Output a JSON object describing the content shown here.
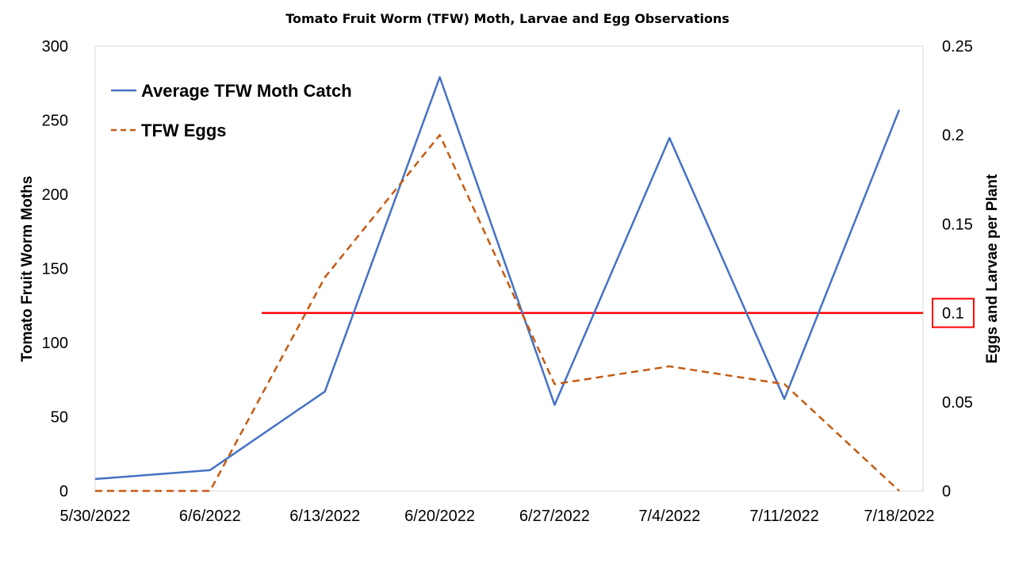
{
  "chart_data": {
    "type": "line",
    "title": "Tomato Fruit Worm (TFW) Moth, Larvae and Egg Observations",
    "x": [
      "5/30/2022",
      "6/6/2022",
      "6/13/2022",
      "6/20/2022",
      "6/27/2022",
      "7/4/2022",
      "7/11/2022",
      "7/18/2022"
    ],
    "ylabel": "Tomato Fruit Worm Moths",
    "ylim": [
      0,
      300
    ],
    "yticks": [
      "0",
      "50",
      "100",
      "150",
      "200",
      "250",
      "300"
    ],
    "y2label": "Eggs and Larvae per Plant",
    "y2lim": [
      0,
      0.25
    ],
    "y2ticks": [
      "0",
      "0.05",
      "0.1",
      "0.15",
      "0.2",
      "0.25"
    ],
    "highlighted_y2_tick": "0.1",
    "legend_position": "top-left",
    "grid": false,
    "series": [
      {
        "name": "Average TFW Moth Catch",
        "axis": "left",
        "color": "#4472C4",
        "style": "solid",
        "values": [
          8,
          14,
          67,
          279,
          58,
          238,
          62,
          257
        ]
      },
      {
        "name": "TFW Eggs",
        "axis": "right",
        "color": "#C55A11",
        "style": "dashed",
        "values": [
          0,
          0,
          0.12,
          0.2,
          0.06,
          0.07,
          0.06,
          0
        ]
      }
    ],
    "threshold": {
      "value": 0.1,
      "axis": "right",
      "from_x": "6/6/2022",
      "from_offset_fraction": 0.45,
      "to_x": "right-edge",
      "color": "#FF0000"
    }
  }
}
